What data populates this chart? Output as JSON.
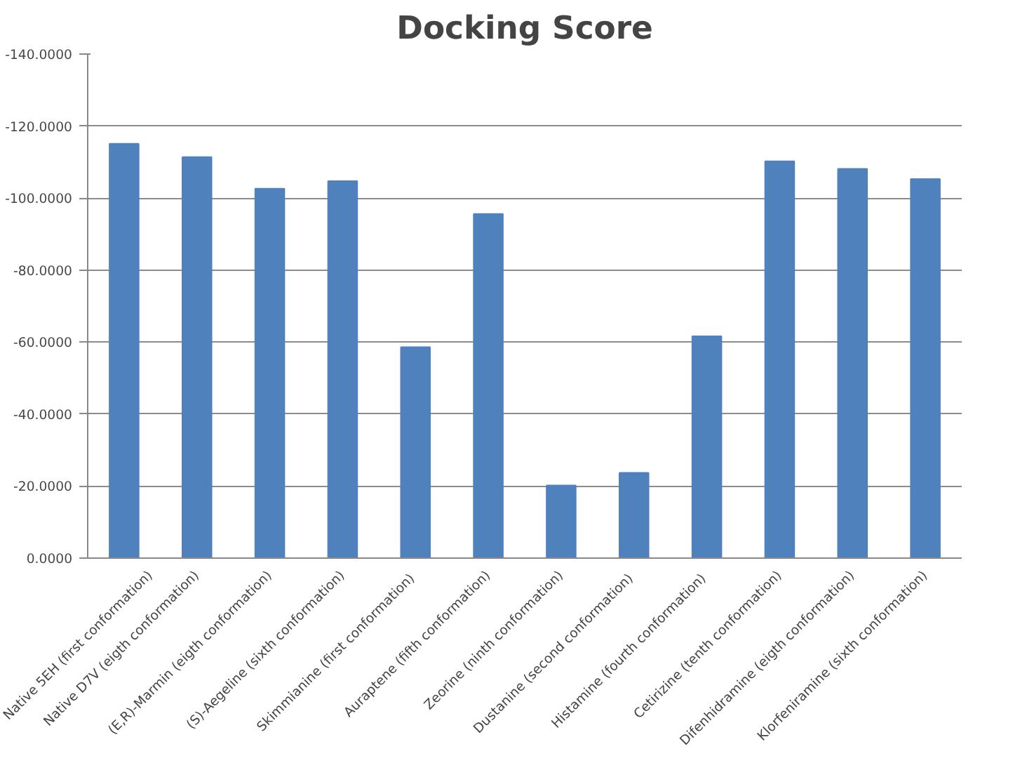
{
  "chart_data": {
    "type": "bar",
    "title": "Docking Score",
    "categories": [
      "Native 5EH (first conformation)",
      "Native D7V (eigth conformation)",
      "(E,R)-Marmin (eigth conformation)",
      "(S)-Aegeline (sixth conformation)",
      "Skimmianine  (first conformation)",
      "Auraptene (fifth conformation)",
      "Zeorine (ninth conformation)",
      "Dustanine  (second conformation)",
      "Histamine  (fourth conformation)",
      "Cetirizine (tenth conformation)",
      "Difenhidramine (eigth conformation)",
      "Klorfeniramine (sixth conformation)"
    ],
    "values": [
      -115.1,
      -111.4,
      -102.6,
      -104.7,
      -58.6,
      -95.6,
      -20.2,
      -23.7,
      -61.6,
      -110.2,
      -108.1,
      -105.3
    ],
    "color": "#4f81bd",
    "ylim": [
      0,
      -140
    ],
    "yticks": [
      {
        "value": 0,
        "label": "0.0000"
      },
      {
        "value": -20,
        "label": "-20.0000"
      },
      {
        "value": -40,
        "label": "-40.0000"
      },
      {
        "value": -60,
        "label": "-60.0000"
      },
      {
        "value": -80,
        "label": "-80.0000"
      },
      {
        "value": -100,
        "label": "-100.0000"
      },
      {
        "value": -120,
        "label": "-120.0000"
      },
      {
        "value": -140,
        "label": "-140.0000"
      }
    ],
    "grid": "y"
  }
}
